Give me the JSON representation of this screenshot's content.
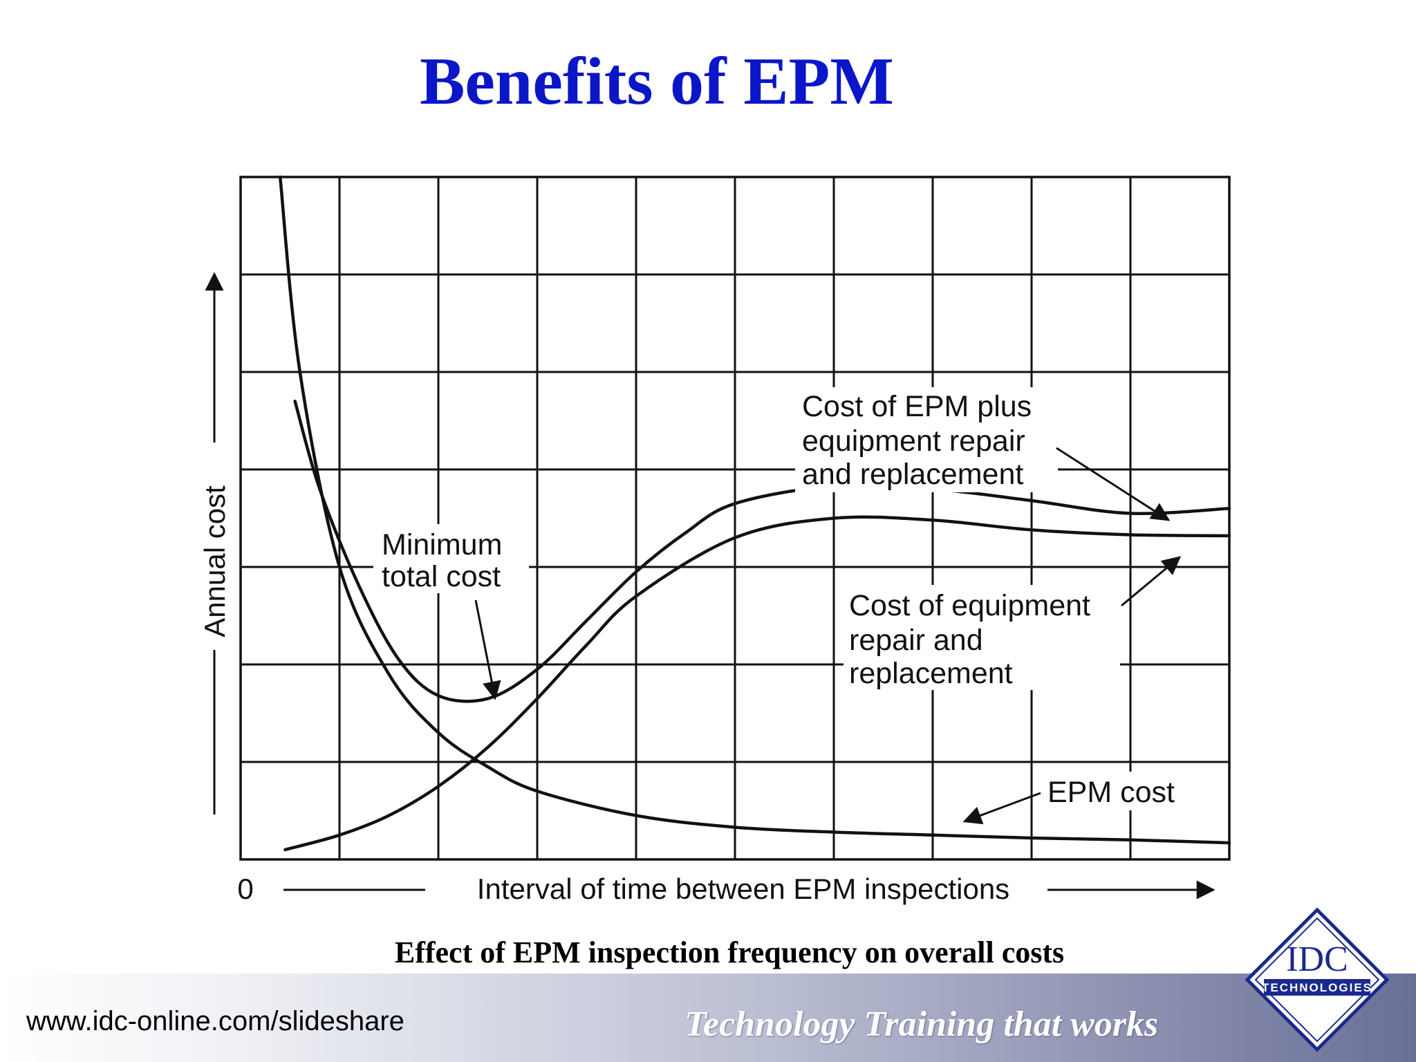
{
  "slide": {
    "title": "Benefits of EPM",
    "caption": "Effect of EPM inspection frequency on overall costs"
  },
  "footer": {
    "url": "www.idc-online.com/slideshare",
    "tagline": "Technology Training that works",
    "logo_main": "IDC",
    "logo_sub": "TECHNOLOGIES",
    "colors": {
      "band_start": "#ffffff",
      "band_end": "#6a6f98",
      "logo_blue": "#1a2a8c"
    }
  },
  "chart_data": {
    "type": "line",
    "xlabel": "Interval of time between EPM inspections",
    "ylabel": "Annual cost",
    "origin_label": "0",
    "xlim": [
      0,
      10
    ],
    "ylim": [
      0,
      7
    ],
    "grid": true,
    "grid_columns": 10,
    "grid_rows": 7,
    "series": [
      {
        "name": "EPM cost",
        "points": [
          [
            0.4,
            7.0
          ],
          [
            0.6,
            5.0
          ],
          [
            1.0,
            3.0
          ],
          [
            1.5,
            1.9
          ],
          [
            2.0,
            1.3
          ],
          [
            2.5,
            0.95
          ],
          [
            3.0,
            0.7
          ],
          [
            4.0,
            0.45
          ],
          [
            5.0,
            0.33
          ],
          [
            6.0,
            0.28
          ],
          [
            7.0,
            0.25
          ],
          [
            8.0,
            0.22
          ],
          [
            9.0,
            0.2
          ],
          [
            10.0,
            0.17
          ]
        ]
      },
      {
        "name": "Cost of equipment repair and replacement",
        "points": [
          [
            0.45,
            0.1
          ],
          [
            1.0,
            0.25
          ],
          [
            1.5,
            0.45
          ],
          [
            2.0,
            0.75
          ],
          [
            2.5,
            1.15
          ],
          [
            3.0,
            1.65
          ],
          [
            3.5,
            2.2
          ],
          [
            4.0,
            2.7
          ],
          [
            5.0,
            3.3
          ],
          [
            6.0,
            3.5
          ],
          [
            7.0,
            3.48
          ],
          [
            8.0,
            3.38
          ],
          [
            9.0,
            3.33
          ],
          [
            10.0,
            3.32
          ]
        ]
      },
      {
        "name": "Cost of EPM plus equipment repair and replacement",
        "points": [
          [
            0.55,
            4.7
          ],
          [
            0.8,
            3.8
          ],
          [
            1.2,
            2.8
          ],
          [
            1.6,
            2.05
          ],
          [
            2.0,
            1.68
          ],
          [
            2.5,
            1.65
          ],
          [
            3.0,
            1.95
          ],
          [
            3.5,
            2.45
          ],
          [
            4.0,
            2.95
          ],
          [
            4.5,
            3.35
          ],
          [
            5.0,
            3.65
          ],
          [
            6.0,
            3.83
          ],
          [
            7.0,
            3.8
          ],
          [
            8.0,
            3.68
          ],
          [
            9.0,
            3.55
          ],
          [
            10.0,
            3.6
          ]
        ]
      }
    ],
    "annotations": [
      {
        "text": "Minimum total cost",
        "target": [
          2.6,
          1.65
        ]
      },
      {
        "text": "Cost of EPM plus equipment repair and replacement",
        "target": [
          9.4,
          3.58
        ]
      },
      {
        "text": "Cost of equipment repair and replacement",
        "target": [
          9.4,
          3.33
        ]
      },
      {
        "text": "EPM cost",
        "target": [
          7.3,
          0.25
        ]
      }
    ],
    "labels": {
      "min_line1": "Minimum",
      "min_line2": "total cost",
      "total_line1": "Cost of EPM plus",
      "total_line2": "equipment repair",
      "total_line3": "and replacement",
      "repair_line1": "Cost of equipment",
      "repair_line2": "repair and",
      "repair_line3": "replacement",
      "epm": "EPM cost"
    }
  }
}
